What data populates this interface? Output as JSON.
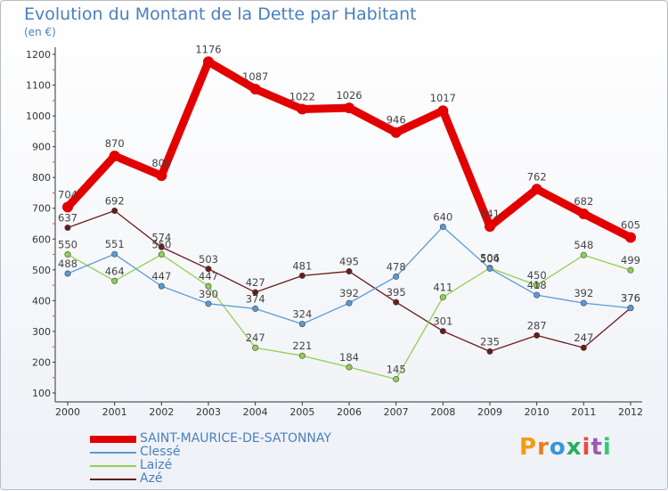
{
  "chart_data": {
    "type": "line",
    "title": "Evolution du Montant de la Dette par Habitant",
    "subtitle": "(en €)",
    "xlabel": "",
    "ylabel": "",
    "x": [
      "2000",
      "2001",
      "2002",
      "2003",
      "2004",
      "2005",
      "2006",
      "2007",
      "2008",
      "2009",
      "2010",
      "2011",
      "2012"
    ],
    "ylim": [
      100,
      1200
    ],
    "yticks": [
      100,
      200,
      300,
      400,
      500,
      600,
      700,
      800,
      900,
      1000,
      1100,
      1200
    ],
    "grid": false,
    "legend_position": "bottom-left",
    "series": [
      {
        "name": "SAINT-MAURICE-DE-SATONNAY",
        "color": "#e30000",
        "values": [
          704,
          870,
          806,
          1176,
          1087,
          1022,
          1026,
          946,
          1017,
          641,
          762,
          682,
          605
        ]
      },
      {
        "name": "Clessé",
        "color": "#5b9bd5",
        "values": [
          488,
          551,
          447,
          390,
          374,
          324,
          392,
          478,
          640,
          504,
          418,
          392,
          376
        ]
      },
      {
        "name": "Laizé",
        "color": "#92d050",
        "values": [
          550,
          464,
          550,
          447,
          247,
          221,
          184,
          145,
          411,
          506,
          450,
          548,
          499
        ]
      },
      {
        "name": "Azé",
        "color": "#6b1a1a",
        "values": [
          637,
          692,
          574,
          503,
          427,
          481,
          495,
          395,
          301,
          235,
          287,
          247,
          376
        ]
      }
    ]
  },
  "brand": {
    "text": "Proxiti",
    "letter_colors": [
      "#f39c12",
      "#e67e22",
      "#3498db",
      "#27ae60",
      "#e74c3c",
      "#9b59b6",
      "#2ecc71"
    ]
  }
}
